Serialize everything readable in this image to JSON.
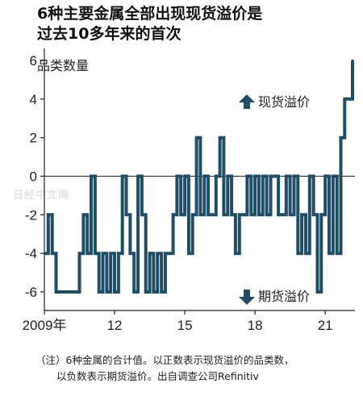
{
  "title_line1": "6种主要金属全部出现现货溢价是",
  "title_line2": "过去10多年来的首次",
  "y_unit_label": "品类数量",
  "annotation_up": "现货溢价",
  "annotation_down": "期货溢价",
  "watermark": "日经中文网",
  "footnote_line1": "（注）6种金属的合计值。以正数表示现货溢价的品类数，",
  "footnote_line2": "以负数表示期货溢价。出自调查公司Refinitiv",
  "colors": {
    "series": "#1f4e66",
    "axis": "#222222",
    "arrow": "#1f4e66"
  },
  "chart_data": {
    "type": "line",
    "step": true,
    "title": "6种主要金属全部出现现货溢价是过去10多年来的首次",
    "ylabel": "品类数量",
    "ylim": [
      -6,
      6
    ],
    "xlim": [
      "2009-01",
      "2022-03"
    ],
    "yticks": [
      6,
      4,
      2,
      0,
      -2,
      -4,
      -6
    ],
    "ytick_labels": [
      "6",
      "4",
      "2",
      "0",
      "-2",
      "-4",
      "-6"
    ],
    "xticks": [
      "2009-01",
      "2012-01",
      "2015-01",
      "2018-01",
      "2021-01"
    ],
    "xtick_labels": [
      "2009年",
      "12",
      "15",
      "18",
      "21"
    ],
    "grid": false,
    "series": [
      {
        "x": [
          "2009-01",
          "2009-03",
          "2009-05",
          "2009-07",
          "2009-09",
          "2009-11",
          "2010-01",
          "2010-03",
          "2010-05",
          "2010-07",
          "2010-09",
          "2010-11",
          "2011-01",
          "2011-03",
          "2011-05",
          "2011-07",
          "2011-09",
          "2011-11",
          "2012-01",
          "2012-03",
          "2012-05",
          "2012-07",
          "2012-09",
          "2012-11",
          "2013-01",
          "2013-03",
          "2013-05",
          "2013-07",
          "2013-09",
          "2013-11",
          "2014-01",
          "2014-03",
          "2014-05",
          "2014-07",
          "2014-09",
          "2014-11",
          "2015-01",
          "2015-03",
          "2015-05",
          "2015-07",
          "2015-09",
          "2015-11",
          "2016-01",
          "2016-03",
          "2016-05",
          "2016-07",
          "2016-09",
          "2016-11",
          "2017-01",
          "2017-03",
          "2017-05",
          "2017-07",
          "2017-09",
          "2017-11",
          "2018-01",
          "2018-03",
          "2018-05",
          "2018-07",
          "2018-09",
          "2018-11",
          "2019-01",
          "2019-03",
          "2019-05",
          "2019-07",
          "2019-09",
          "2019-11",
          "2020-01",
          "2020-03",
          "2020-05",
          "2020-07",
          "2020-09",
          "2020-11",
          "2021-01",
          "2021-03",
          "2021-05",
          "2021-07",
          "2021-09",
          "2021-11",
          "2022-01",
          "2022-03"
        ],
        "values": [
          -4,
          -2,
          -4,
          -6,
          -6,
          -6,
          -6,
          -6,
          -6,
          -4,
          -2,
          -4,
          0,
          -4,
          -6,
          -4,
          -6,
          -4,
          -6,
          -4,
          0,
          -2,
          -4,
          -6,
          0,
          -2,
          -6,
          -4,
          -6,
          -4,
          -6,
          -4,
          -4,
          -2,
          0,
          -2,
          0,
          -4,
          -2,
          2,
          -2,
          0,
          -2,
          -2,
          0,
          2,
          -2,
          0,
          -2,
          -4,
          -2,
          -2,
          0,
          -2,
          0,
          -2,
          0,
          -2,
          0,
          0,
          -2,
          -2,
          0,
          -2,
          0,
          -4,
          -2,
          -4,
          0,
          -2,
          -6,
          -2,
          0,
          -4,
          0,
          -4,
          2,
          4,
          4,
          6
        ]
      }
    ]
  }
}
